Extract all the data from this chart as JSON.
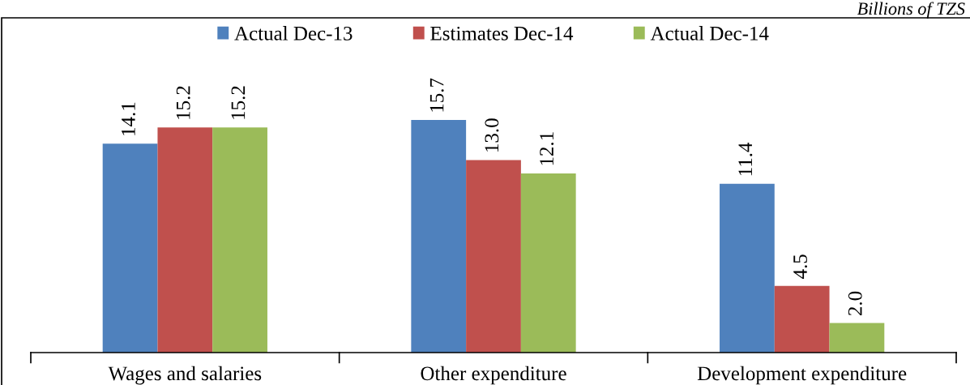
{
  "chart_data": {
    "type": "bar",
    "categories": [
      "Wages and salaries",
      "Other expenditure",
      "Development expenditure"
    ],
    "series": [
      {
        "name": "Actual Dec-13",
        "color": "#4f81bd",
        "values": [
          14.1,
          15.7,
          11.4
        ],
        "value_labels": [
          "14.1",
          "15.7",
          "11.4"
        ]
      },
      {
        "name": "Estimates Dec-14",
        "color": "#c0504d",
        "values": [
          15.2,
          13.0,
          4.5
        ],
        "value_labels": [
          "15.2",
          "13.0",
          "4.5"
        ]
      },
      {
        "name": "Actual Dec-14",
        "color": "#9bbb59",
        "values": [
          15.2,
          12.1,
          2.0
        ],
        "value_labels": [
          "15.2",
          "12.1",
          "2.0"
        ]
      }
    ],
    "ylim": [
      0,
      22.6
    ],
    "legend": "top",
    "grid": false,
    "annotations": [
      "Billions of TZS"
    ]
  }
}
